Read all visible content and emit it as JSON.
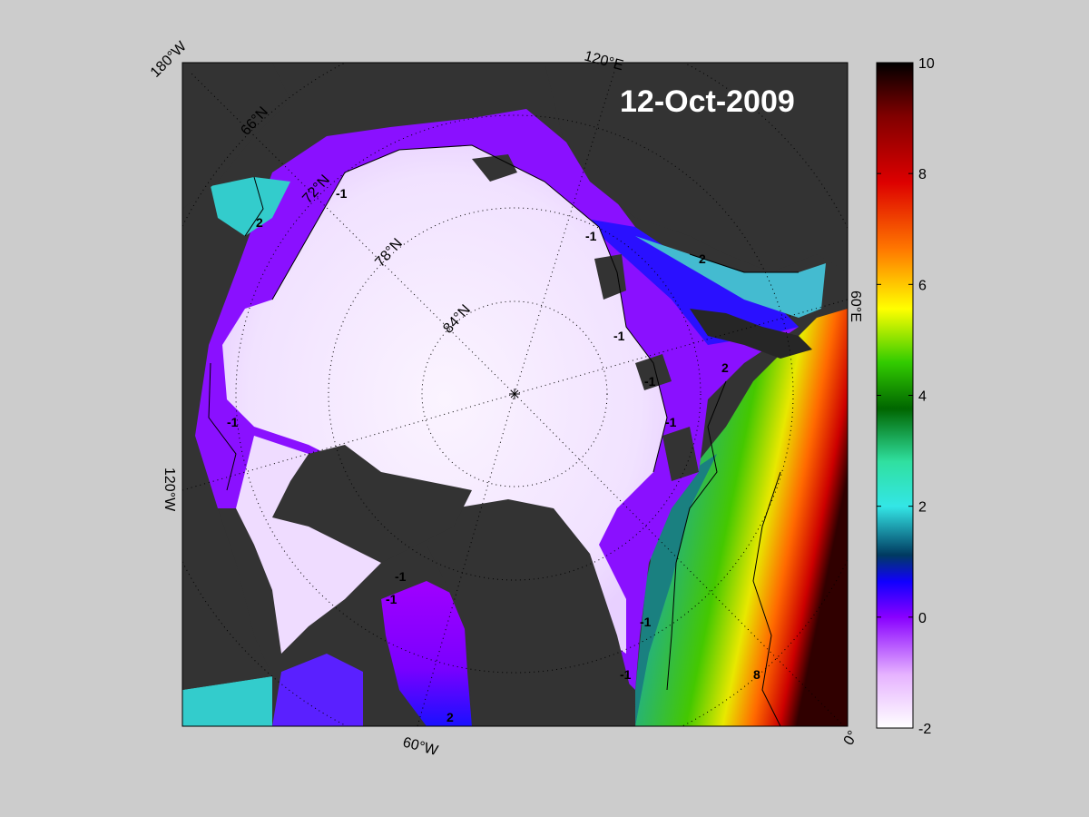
{
  "date_label": "12-Oct-2009",
  "edge_labels": {
    "top_left": "180°W",
    "top": "120°E",
    "right": "60°E",
    "left": "120°W",
    "bottom": "60°W",
    "bottom_right": "0°"
  },
  "latitude_labels": [
    "66°N",
    "72°N",
    "78°N",
    "84°N"
  ],
  "contour_labels": [
    "-1",
    "-1",
    "-1",
    "-1",
    "-1",
    "-1",
    "-1",
    "-1",
    "-1",
    "-1",
    "2",
    "2",
    "2",
    "2",
    "8"
  ],
  "colorbar": {
    "min": -2,
    "max": 10,
    "ticks": [
      "10",
      "8",
      "6",
      "4",
      "2",
      "0",
      "-2"
    ],
    "colors": [
      "#ffffff",
      "#e6b3ff",
      "#8800ff",
      "#1000ff",
      "#003a60",
      "#33e6e6",
      "#30e0a0",
      "#006600",
      "#33cc00",
      "#ffff00",
      "#ff7700",
      "#dd0000",
      "#800000",
      "#000000"
    ]
  },
  "colors": {
    "land": "#333333",
    "ice_shelf": "#808080",
    "background": "#cccccc",
    "ice": "#f3e6ff"
  }
}
